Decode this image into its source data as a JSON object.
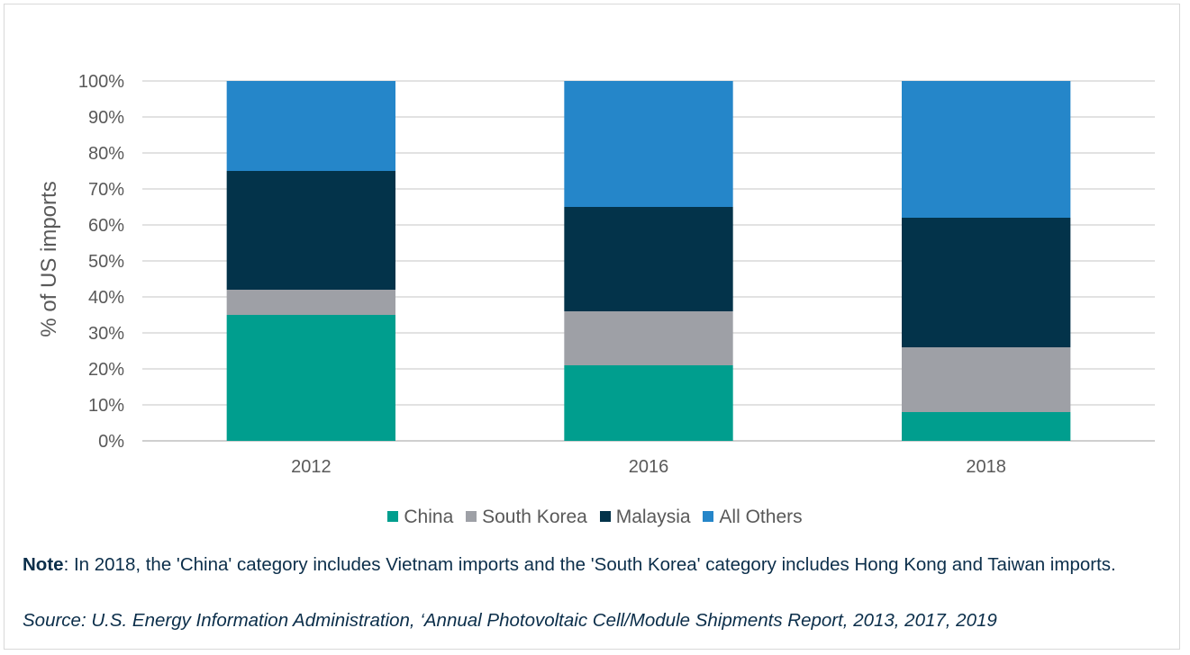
{
  "chart_data": {
    "type": "bar",
    "stacked": true,
    "categories": [
      "2012",
      "2016",
      "2018"
    ],
    "series": [
      {
        "name": "China",
        "color": "#009e8e",
        "values": [
          35,
          21,
          8
        ]
      },
      {
        "name": "South Korea",
        "color": "#9ea0a6",
        "values": [
          7,
          15,
          18
        ]
      },
      {
        "name": "Malaysia",
        "color": "#03334a",
        "values": [
          33,
          29,
          36
        ]
      },
      {
        "name": "All Others",
        "color": "#2586c9",
        "values": [
          25,
          35,
          38
        ]
      }
    ],
    "ylabel": "% of US imports",
    "ylim": [
      0,
      100
    ],
    "yticks": [
      "0%",
      "10%",
      "20%",
      "30%",
      "40%",
      "50%",
      "60%",
      "70%",
      "80%",
      "90%",
      "100%"
    ],
    "grid": true,
    "legend_position": "bottom"
  },
  "legend": [
    {
      "label": "China",
      "color": "#009e8e"
    },
    {
      "label": "South Korea",
      "color": "#9ea0a6"
    },
    {
      "label": "Malaysia",
      "color": "#03334a"
    },
    {
      "label": "All Others",
      "color": "#2586c9"
    }
  ],
  "note": {
    "label": "Note",
    "text": ": In 2018, the 'China' category includes Vietnam imports and the 'South Korea' category includes Hong Kong and Taiwan imports."
  },
  "source": "Source: U.S. Energy Information Administration, ‘Annual Photovoltaic Cell/Module Shipments Report, 2013, 2017, 2019"
}
